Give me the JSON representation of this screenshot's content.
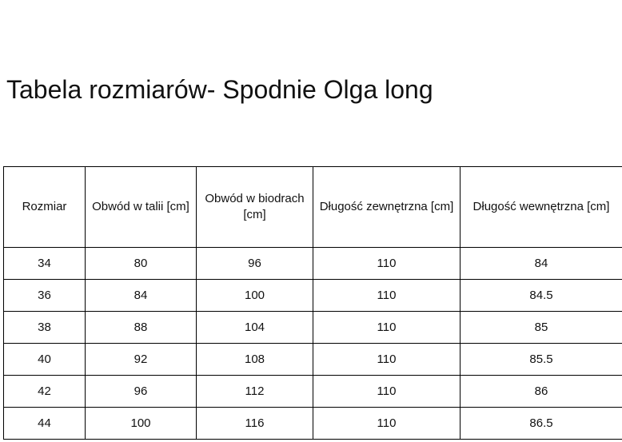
{
  "title": "Tabela rozmiarów- Spodnie Olga long",
  "table": {
    "headers": [
      "Rozmiar",
      "Obwód w talii [cm]",
      "Obwód w biodrach [cm]",
      "Długość zewnętrzna [cm]",
      "Długość wewnętrzna [cm]"
    ],
    "rows": [
      [
        "34",
        "80",
        "96",
        "110",
        "84"
      ],
      [
        "36",
        "84",
        "100",
        "110",
        "84.5"
      ],
      [
        "38",
        "88",
        "104",
        "110",
        "85"
      ],
      [
        "40",
        "92",
        "108",
        "110",
        "85.5"
      ],
      [
        "42",
        "96",
        "112",
        "110",
        "86"
      ],
      [
        "44",
        "100",
        "116",
        "110",
        "86.5"
      ]
    ]
  }
}
